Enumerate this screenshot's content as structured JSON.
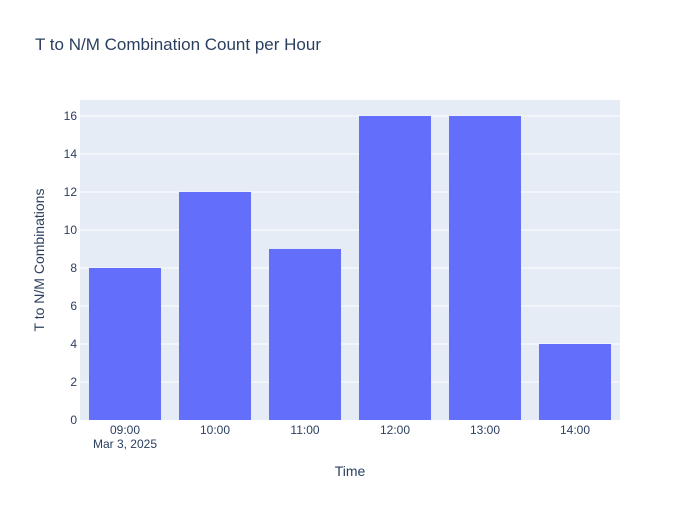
{
  "chart_data": {
    "type": "bar",
    "title": "T to N/M Combination Count per Hour",
    "xlabel": "Time",
    "ylabel": "T to N/M Combinations",
    "categories": [
      "09:00",
      "10:00",
      "11:00",
      "12:00",
      "13:00",
      "14:00"
    ],
    "x_date_sublabel": "Mar 3, 2025",
    "values": [
      8,
      12,
      9,
      16,
      16,
      4
    ],
    "ylim": [
      0,
      16.84
    ],
    "yticks": [
      0,
      2,
      4,
      6,
      8,
      10,
      12,
      14,
      16
    ],
    "grid": true,
    "legend": "none",
    "colors": {
      "bar": "#636efa",
      "plot_bg": "#e5ecf6",
      "grid": "#ffffff",
      "text": "#2a3f5f",
      "tick_text": "#2a3f5f"
    }
  }
}
